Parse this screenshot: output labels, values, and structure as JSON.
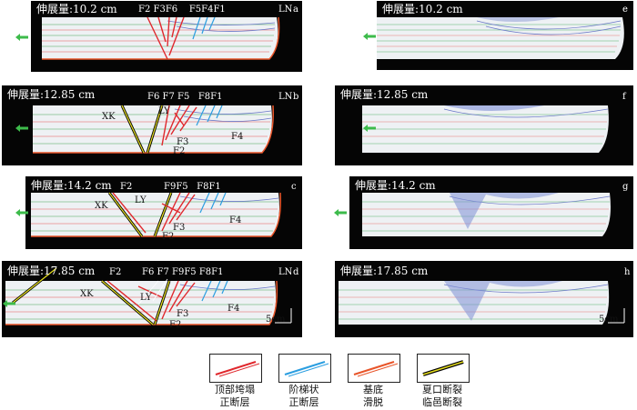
{
  "panels": {
    "a": {
      "extension": "伸展量:10.2 cm",
      "letter": "a",
      "label_LN": "LN",
      "faults": [
        "F2",
        "F3",
        "F6",
        "F5",
        "F4",
        "F1"
      ]
    },
    "b": {
      "extension": "伸展量:12.85 cm",
      "letter": "b",
      "label_LN": "LN",
      "top_faults": [
        "F6",
        "F7",
        "F5",
        "F8",
        "F1"
      ],
      "XK": "XK",
      "LY": "LY",
      "F3": "F3",
      "F2": "F2",
      "F4": "F4"
    },
    "c": {
      "extension": "伸展量:14.2 cm",
      "letter": "c",
      "label_LN": "",
      "top_faults": [
        "F2",
        "F9",
        "F5",
        "F8",
        "F1"
      ],
      "XK": "XK",
      "LY": "LY",
      "F3": "F3",
      "F2b": "F2",
      "F4": "F4"
    },
    "d": {
      "extension": "伸展量:17.85 cm",
      "letter": "d",
      "label_LN": "LN",
      "top_faults": [
        "F2",
        "F6",
        "F7",
        "F9",
        "F5",
        "F8",
        "F1"
      ],
      "XK": "XK",
      "LY": "LY",
      "F3": "F3",
      "F2b": "F2",
      "F4": "F4",
      "scale": "5cm"
    },
    "e": {
      "extension": "伸展量:10.2 cm",
      "letter": "e"
    },
    "f": {
      "extension": "伸展量:12.85 cm",
      "letter": "f"
    },
    "g": {
      "extension": "伸展量:14.2 cm",
      "letter": "g"
    },
    "h": {
      "extension": "伸展量:17.85 cm",
      "letter": "h",
      "scale": "5cm"
    }
  },
  "legend": [
    {
      "line1": "顶部垮塌",
      "line2": "正断层",
      "color": "#e0282d"
    },
    {
      "line1": "阶梯状",
      "line2": "正断层",
      "color": "#2b9ee0"
    },
    {
      "line1": "基底",
      "line2": "滑脱",
      "color": "#e8552a"
    },
    {
      "line1": "夏口断裂",
      "line2": "临邑断裂",
      "color": "#000000"
    }
  ],
  "colors": {
    "background": "#050505",
    "model": "#eef1f4",
    "red_fault": "#e0282d",
    "blue_fault": "#2b9ee0",
    "basal": "#e8552a",
    "arrow": "#3dbb4b"
  }
}
